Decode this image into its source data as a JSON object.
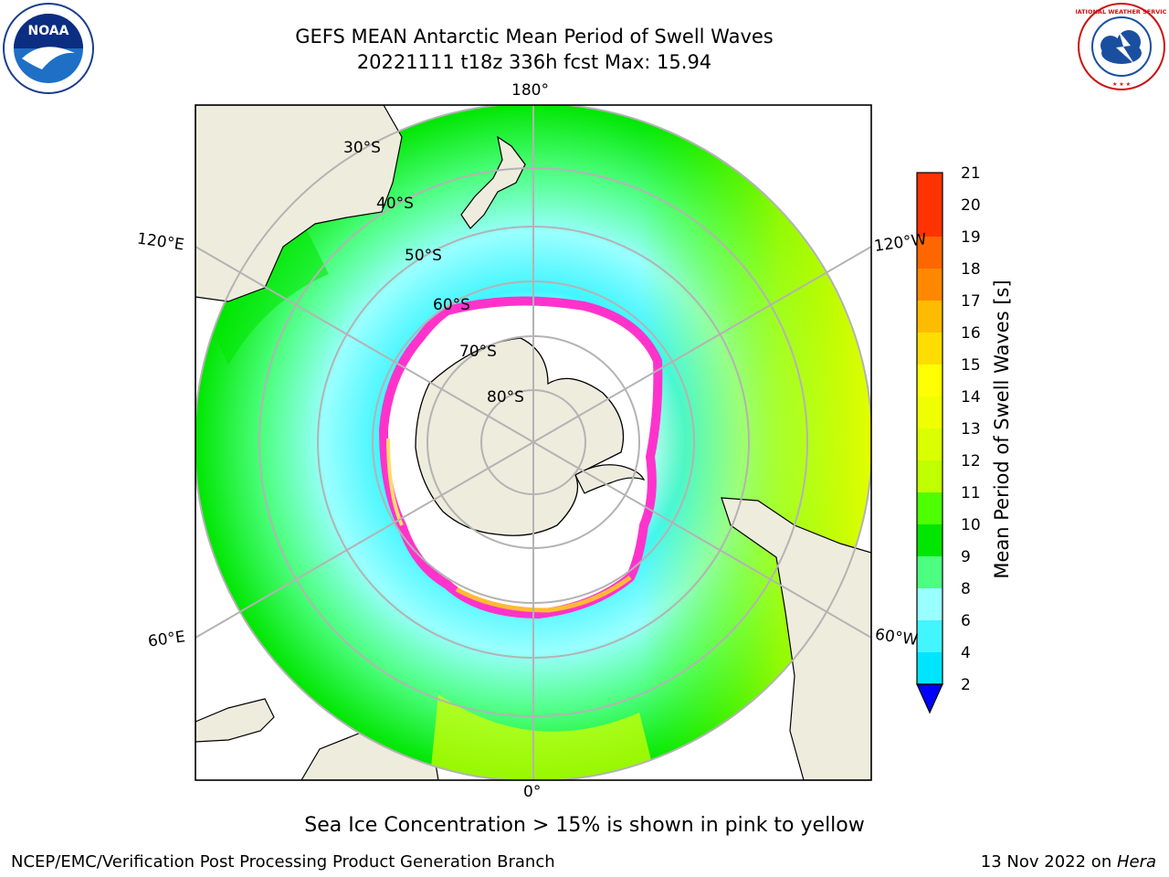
{
  "header": {
    "title_line1": "GEFS MEAN Antarctic Mean Period of Swell Waves",
    "title_line2": "20221111 t18z 336h fcst   Max: 15.94"
  },
  "logos": {
    "left": {
      "name": "noaa-logo",
      "text": "NOAA"
    },
    "right": {
      "name": "nws-logo",
      "text": "NATIONAL WEATHER SERVICE"
    }
  },
  "map": {
    "projection": "south-polar-stereographic",
    "longitude_labels": {
      "top": "180°",
      "bottom": "0°",
      "upper_left": "120°E",
      "upper_right": "120°W",
      "lower_left": "60°E",
      "lower_right": "60°W"
    },
    "latitude_labels": [
      "30°S",
      "40°S",
      "50°S",
      "60°S",
      "70°S",
      "80°S"
    ],
    "colors": {
      "land": "#eeecdd",
      "ice_edge_pink": "#ff33cc",
      "ice_edge_orange": "#ffbb33",
      "grid": "#b3b3b3"
    }
  },
  "chart_data": {
    "type": "heatmap",
    "variable": "Mean Period of Swell Waves",
    "units": "s",
    "max_value": 15.94,
    "colorbar": {
      "label": "Mean Period of Swell Waves [s]",
      "ticks": [
        "2",
        "4",
        "6",
        "8",
        "9",
        "10",
        "11",
        "12",
        "13",
        "14",
        "15",
        "16",
        "17",
        "18",
        "19",
        "20",
        "21"
      ],
      "extend": "min",
      "colors": [
        "#0075ff",
        "#00e5ff",
        "#42f5ff",
        "#99ffff",
        "#4dff80",
        "#00e600",
        "#4dff00",
        "#bfff00",
        "#d9ff00",
        "#f0ff00",
        "#ffff00",
        "#ffdd00",
        "#ffbb00",
        "#ff8800",
        "#ff6600",
        "#ff3300"
      ],
      "under_color": "#0000ff"
    }
  },
  "footer": {
    "note": "Sea Ice Concentration > 15% is shown in pink to yellow",
    "left": "NCEP/EMC/Verification Post Processing Product Generation Branch",
    "right_prefix": "13 Nov 2022 on ",
    "right_machine": "Hera"
  }
}
